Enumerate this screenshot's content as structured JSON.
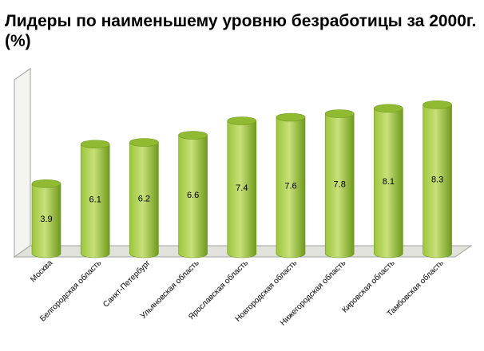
{
  "chart_data": {
    "type": "bar",
    "style": "3d-cylinder",
    "title": "Лидеры по наименьшему уровню безработицы за 2000г. (%)",
    "categories": [
      "Москва",
      "Белгородская область",
      "Санкт-Петербург",
      "Ульяновская область",
      "Ярославская область",
      "Новгородская область",
      "Нижегородская область",
      "Кировская область",
      "Тамбовская область"
    ],
    "values": [
      3.9,
      6.1,
      6.2,
      6.6,
      7.4,
      7.6,
      7.8,
      8.1,
      8.3
    ],
    "data_labels": [
      "3.9",
      "6.1",
      "6.2",
      "6.6",
      "7.4",
      "7.6",
      "7.8",
      "8.1",
      "8.3"
    ],
    "ylim": [
      0,
      9
    ],
    "grid": false,
    "legend": "none",
    "colors": {
      "bar_light": "#c8e07a",
      "bar_mid": "#9cc63c",
      "bar_dark": "#6e9a1c",
      "bar_top": "#8fba32",
      "wall": "#f4f4f0",
      "floor": "#e2e2dc",
      "wall_edge": "#a0a0a0"
    }
  }
}
